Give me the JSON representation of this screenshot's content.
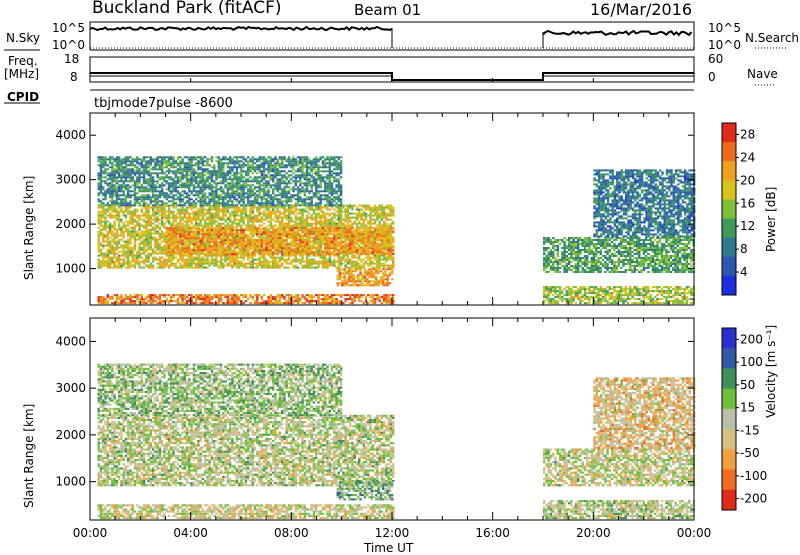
{
  "header": {
    "station": "Buckland Park (fitACF)",
    "beam": "Beam 01",
    "date": "16/Mar/2016"
  },
  "status_labels": {
    "nsky": "N.Sky",
    "nsearch": "N.Search",
    "freq": "Freq.",
    "freq_unit": "[MHz]",
    "nave": "Nave",
    "cpid": "CPID",
    "cpid_value": "tbjmode7pulse -8600"
  },
  "status_ticks": {
    "noise_left_top": "10^5",
    "noise_left_bottom": "10^0",
    "noise_right_top": "10^5",
    "noise_right_bottom": "10^0",
    "freq_left_top": "18",
    "freq_left_bottom": "8",
    "nave_right_top": "60",
    "nave_right_bottom": "0"
  },
  "colors": {
    "axis": "#000000",
    "power_scale": [
      "#1a2fe0",
      "#2a57b0",
      "#2f7a8a",
      "#3f9a5a",
      "#7cbf3a",
      "#d9c21a",
      "#f0a01a",
      "#f06a1a",
      "#e02a1a"
    ],
    "velocity_scale": [
      "#2a2fd0",
      "#2f5aa8",
      "#3f8f5a",
      "#6fbf3a",
      "#b8c0a8",
      "#d8c080",
      "#f0a040",
      "#f06a20",
      "#e02a1a"
    ]
  },
  "chart_data": [
    {
      "type": "heatmap",
      "title": "",
      "xlabel": "",
      "ylabel": "Slant Range [km]",
      "x_range_hours": [
        0,
        24
      ],
      "ylim": [
        180,
        4500
      ],
      "yticks": [
        "1000",
        "2000",
        "3000",
        "4000"
      ],
      "colorbar": {
        "label": "Power [dB]",
        "ticks": [
          "4",
          "8",
          "12",
          "16",
          "20",
          "24",
          "28"
        ],
        "range": [
          0,
          30
        ]
      },
      "data_gaps_hours": [
        [
          12.0,
          18.0
        ]
      ],
      "regions": [
        {
          "t": [
            0.3,
            12.0
          ],
          "r": [
            1000,
            2400
          ],
          "power": 18
        },
        {
          "t": [
            3.0,
            12.0
          ],
          "r": [
            1300,
            1900
          ],
          "power": 22
        },
        {
          "t": [
            0.3,
            10.0
          ],
          "r": [
            2400,
            3500
          ],
          "power": 10
        },
        {
          "t": [
            9.8,
            12.0
          ],
          "r": [
            600,
            1000
          ],
          "power": 22
        },
        {
          "t": [
            0.3,
            12.0
          ],
          "r": [
            200,
            400
          ],
          "power": 24
        },
        {
          "t": [
            18.0,
            24.0
          ],
          "r": [
            900,
            1700
          ],
          "power": 12
        },
        {
          "t": [
            20.0,
            24.0
          ],
          "r": [
            1700,
            3200
          ],
          "power": 8
        },
        {
          "t": [
            18.0,
            24.0
          ],
          "r": [
            200,
            600
          ],
          "power": 16
        }
      ]
    },
    {
      "type": "heatmap",
      "title": "",
      "xlabel": "Time UT",
      "ylabel": "Slant Range [km]",
      "x_range_hours": [
        0,
        24
      ],
      "ylim": [
        180,
        4500
      ],
      "yticks": [
        "1000",
        "2000",
        "3000",
        "4000"
      ],
      "xticks": [
        "00:00",
        "04:00",
        "08:00",
        "12:00",
        "16:00",
        "20:00",
        "00:00"
      ],
      "colorbar": {
        "label": "Velocity [m s⁻¹]",
        "ticks": [
          "200",
          "100",
          "50",
          "15",
          "-15",
          "-50",
          "-100",
          "-200"
        ],
        "range": [
          -250,
          250
        ]
      },
      "data_gaps_hours": [
        [
          12.0,
          18.0
        ]
      ],
      "regions": [
        {
          "t": [
            0.3,
            12.0
          ],
          "r": [
            900,
            2400
          ],
          "velocity": 0
        },
        {
          "t": [
            0.3,
            10.0
          ],
          "r": [
            2400,
            3500
          ],
          "velocity": 30
        },
        {
          "t": [
            9.8,
            12.0
          ],
          "r": [
            600,
            1000
          ],
          "velocity": 60
        },
        {
          "t": [
            0.3,
            12.0
          ],
          "r": [
            200,
            500
          ],
          "velocity": -20
        },
        {
          "t": [
            18.0,
            24.0
          ],
          "r": [
            900,
            1700
          ],
          "velocity": -10
        },
        {
          "t": [
            20.0,
            24.0
          ],
          "r": [
            1700,
            3200
          ],
          "velocity": -60
        },
        {
          "t": [
            18.0,
            24.0
          ],
          "r": [
            200,
            600
          ],
          "velocity": 10
        }
      ]
    }
  ]
}
